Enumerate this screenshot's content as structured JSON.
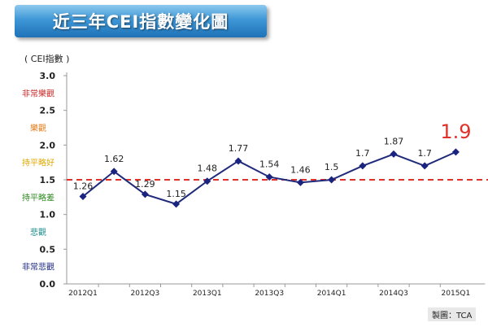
{
  "title": "近三年CEI指數變化圖",
  "y_unit_label": "( CEI指數 )",
  "source": "製圖：TCA",
  "colors": {
    "line": "#1f2a7a",
    "marker": "#1a237e",
    "reference_line": "#e0312b",
    "highlight_label": "#e0312b"
  },
  "sentiment_labels": [
    {
      "text": "非常樂觀",
      "color": "#c62828"
    },
    {
      "text": "樂觀",
      "color": "#e07b1a"
    },
    {
      "text": "持平略好",
      "color": "#e0a800"
    },
    {
      "text": "持平略差",
      "color": "#2e8b20"
    },
    {
      "text": "悲觀",
      "color": "#1b8a8a"
    },
    {
      "text": "非常悲觀",
      "color": "#1a237e"
    }
  ],
  "chart_data": {
    "type": "line",
    "title": "近三年CEI指數變化圖",
    "ylabel": "( CEI指數 )",
    "ylim": [
      0,
      3
    ],
    "yticks": [
      "0.0",
      "0.5",
      "1.0",
      "1.5",
      "2.0",
      "2.5",
      "3.0"
    ],
    "xtick_labels": [
      "2012Q1",
      "2012Q3",
      "2013Q1",
      "2013Q3",
      "2014Q1",
      "2014Q3",
      "2015Q1"
    ],
    "x": [
      "2012Q1",
      "2012Q2",
      "2012Q3",
      "2012Q4",
      "2013Q1",
      "2013Q2",
      "2013Q3",
      "2013Q4",
      "2014Q1",
      "2014Q2",
      "2014Q3",
      "2014Q4",
      "2015Q1"
    ],
    "series": [
      {
        "values": [
          1.26,
          1.62,
          1.29,
          1.15,
          1.48,
          1.77,
          1.54,
          1.46,
          1.5,
          1.7,
          1.87,
          1.7,
          1.9
        ],
        "labels": [
          "1.26",
          "1.62",
          "1.29",
          "1.15",
          "1.48",
          "1.77",
          "1.54",
          "1.46",
          "1.5",
          "1.7",
          "1.87",
          "1.7",
          "1.9"
        ]
      }
    ],
    "reference_line": {
      "value": 1.5,
      "style": "dashed"
    },
    "grid": false
  }
}
